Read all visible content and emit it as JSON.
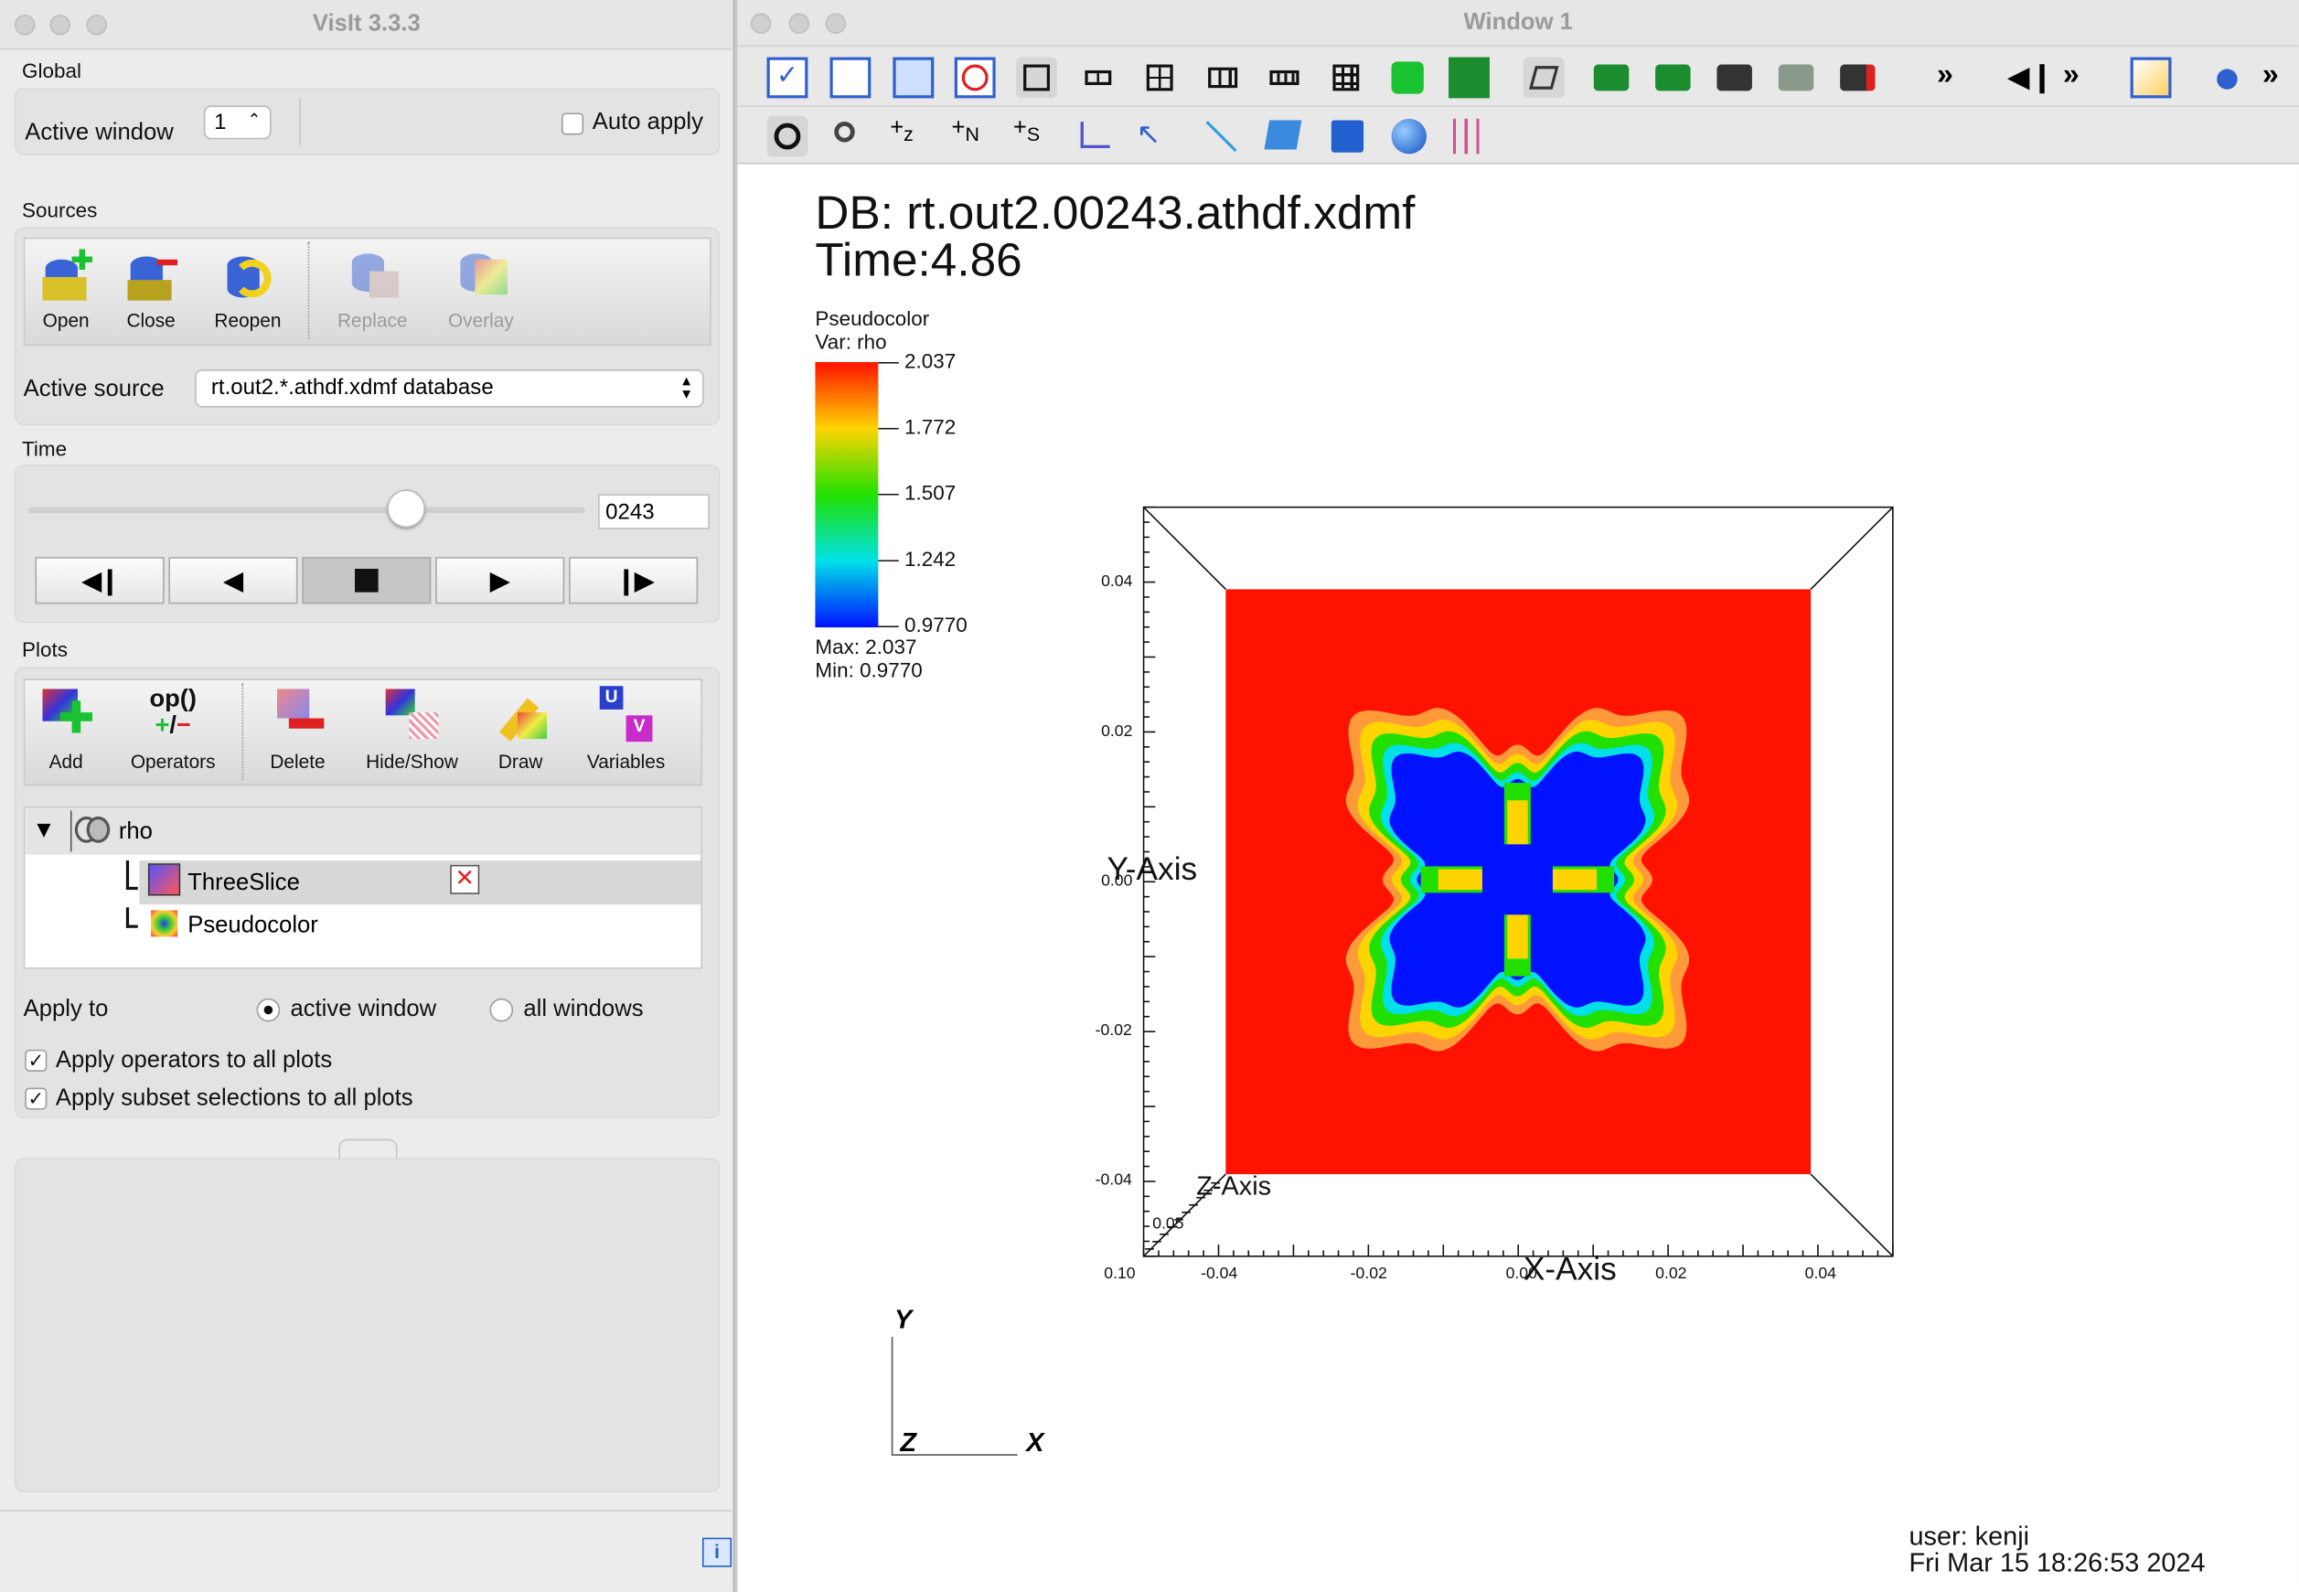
{
  "control_window": {
    "title": "VisIt 3.3.3",
    "global": {
      "label": "Global",
      "active_window_label": "Active window",
      "active_window_value": "1",
      "auto_apply_label": "Auto apply"
    },
    "sources": {
      "label": "Sources",
      "buttons": [
        "Open",
        "Close",
        "Reopen",
        "Replace",
        "Overlay"
      ],
      "active_source_label": "Active source",
      "active_source_value": "rt.out2.*.athdf.xdmf database"
    },
    "time": {
      "label": "Time",
      "slider_fraction": 0.68,
      "frame_value": "0243"
    },
    "plots": {
      "label": "Plots",
      "buttons": [
        "Add",
        "Operators",
        "Delete",
        "Hide/Show",
        "Draw",
        "Variables"
      ],
      "tree": {
        "root": "rho",
        "children": [
          "ThreeSlice",
          "Pseudocolor"
        ]
      },
      "apply_to_label": "Apply to",
      "apply_active": "active window",
      "apply_all": "all windows",
      "apply_operators": "Apply operators to all plots",
      "apply_subset": "Apply subset selections to all plots"
    }
  },
  "vis_window": {
    "title": "Window 1",
    "db_line": "DB: rt.out2.00243.athdf.xdmf",
    "time_line": "Time:4.86",
    "legend": {
      "plot": "Pseudocolor",
      "var": "Var: rho",
      "ticks": [
        "2.037",
        "1.772",
        "1.507",
        "1.242",
        "0.9770"
      ],
      "max": "Max:  2.037",
      "min": "Min:  0.9770"
    },
    "axes": {
      "y_title": "Y-Axis",
      "x_title": "X-Axis",
      "z_title": "Z-Axis",
      "y_ticks": [
        "0.04",
        "0.02",
        "0.00",
        "-0.02",
        "-0.04"
      ],
      "x_ticks": [
        "-0.04",
        "-0.02",
        "0.00",
        "0.02",
        "0.04"
      ],
      "z_ticks": [
        "0.10",
        "0.05"
      ]
    },
    "triad": {
      "y": "Y",
      "z": "Z",
      "x": "X"
    },
    "user_line": "user: kenji",
    "date_line": "Fri Mar 15 18:26:53 2024",
    "colors": {
      "red": "#ff1200",
      "blue": "#0012ff",
      "green": "#21e000",
      "yellow": "#ffd400",
      "cyan": "#00e0e8"
    }
  }
}
